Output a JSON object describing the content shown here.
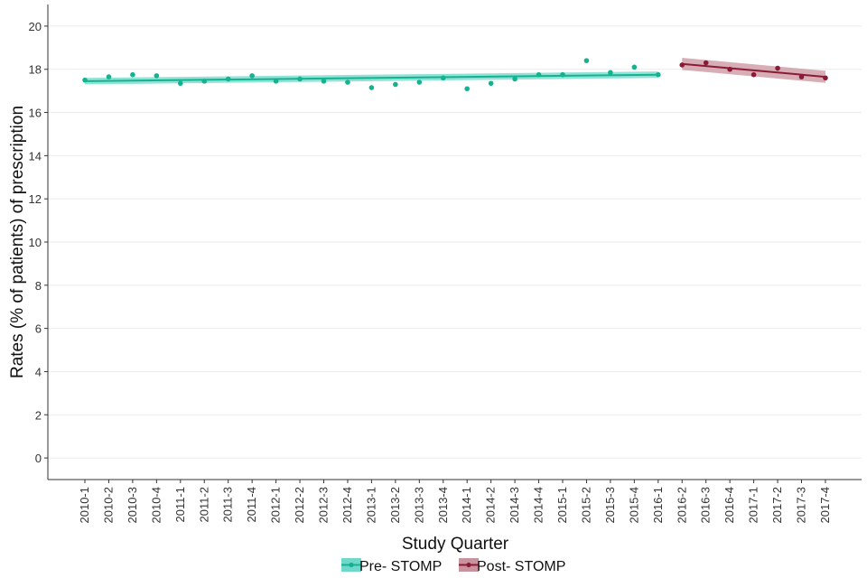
{
  "chart_data": {
    "type": "line",
    "xlabel": "Study Quarter",
    "ylabel": "Rates (% of patients) of prescription",
    "ylim": [
      -1,
      21
    ],
    "y_ticks": [
      0,
      2,
      4,
      6,
      8,
      10,
      12,
      14,
      16,
      18,
      20
    ],
    "grid": true,
    "legend_position": "bottom",
    "categories": [
      "2010-1",
      "2010-2",
      "2010-3",
      "2010-4",
      "2011-1",
      "2011-2",
      "2011-3",
      "2011-4",
      "2012-1",
      "2012-2",
      "2012-3",
      "2012-4",
      "2013-1",
      "2013-2",
      "2013-3",
      "2013-4",
      "2014-1",
      "2014-2",
      "2014-3",
      "2014-4",
      "2015-1",
      "2015-2",
      "2015-3",
      "2015-4",
      "2016-1",
      "2016-2",
      "2016-3",
      "2016-4",
      "2017-1",
      "2017-2",
      "2017-3",
      "2017-4"
    ],
    "series": [
      {
        "name": "Pre- STOMP",
        "color": "#14b38f",
        "band_color": "#6fd8cb",
        "x": [
          "2010-1",
          "2010-2",
          "2010-3",
          "2010-4",
          "2011-1",
          "2011-2",
          "2011-3",
          "2011-4",
          "2012-1",
          "2012-2",
          "2012-3",
          "2012-4",
          "2013-1",
          "2013-2",
          "2013-3",
          "2013-4",
          "2014-1",
          "2014-2",
          "2014-3",
          "2014-4",
          "2015-1",
          "2015-2",
          "2015-3",
          "2015-4",
          "2016-1"
        ],
        "values": [
          17.5,
          17.65,
          17.75,
          17.7,
          17.35,
          17.45,
          17.55,
          17.7,
          17.45,
          17.55,
          17.45,
          17.4,
          17.15,
          17.3,
          17.4,
          17.6,
          17.1,
          17.35,
          17.55,
          17.75,
          17.75,
          18.4,
          17.85,
          18.1,
          17.75
        ],
        "fit_start": 17.45,
        "fit_end": 17.75,
        "band_halfwidth": 0.15
      },
      {
        "name": "Post- STOMP",
        "color": "#8b1a36",
        "band_color": "#c9939d",
        "x": [
          "2016-2",
          "2016-3",
          "2016-4",
          "2017-1",
          "2017-2",
          "2017-3",
          "2017-4"
        ],
        "values": [
          18.2,
          18.3,
          18.0,
          17.75,
          18.05,
          17.65,
          17.6
        ],
        "fit_start": 18.25,
        "fit_end": 17.65,
        "band_halfwidth": 0.28
      }
    ]
  }
}
